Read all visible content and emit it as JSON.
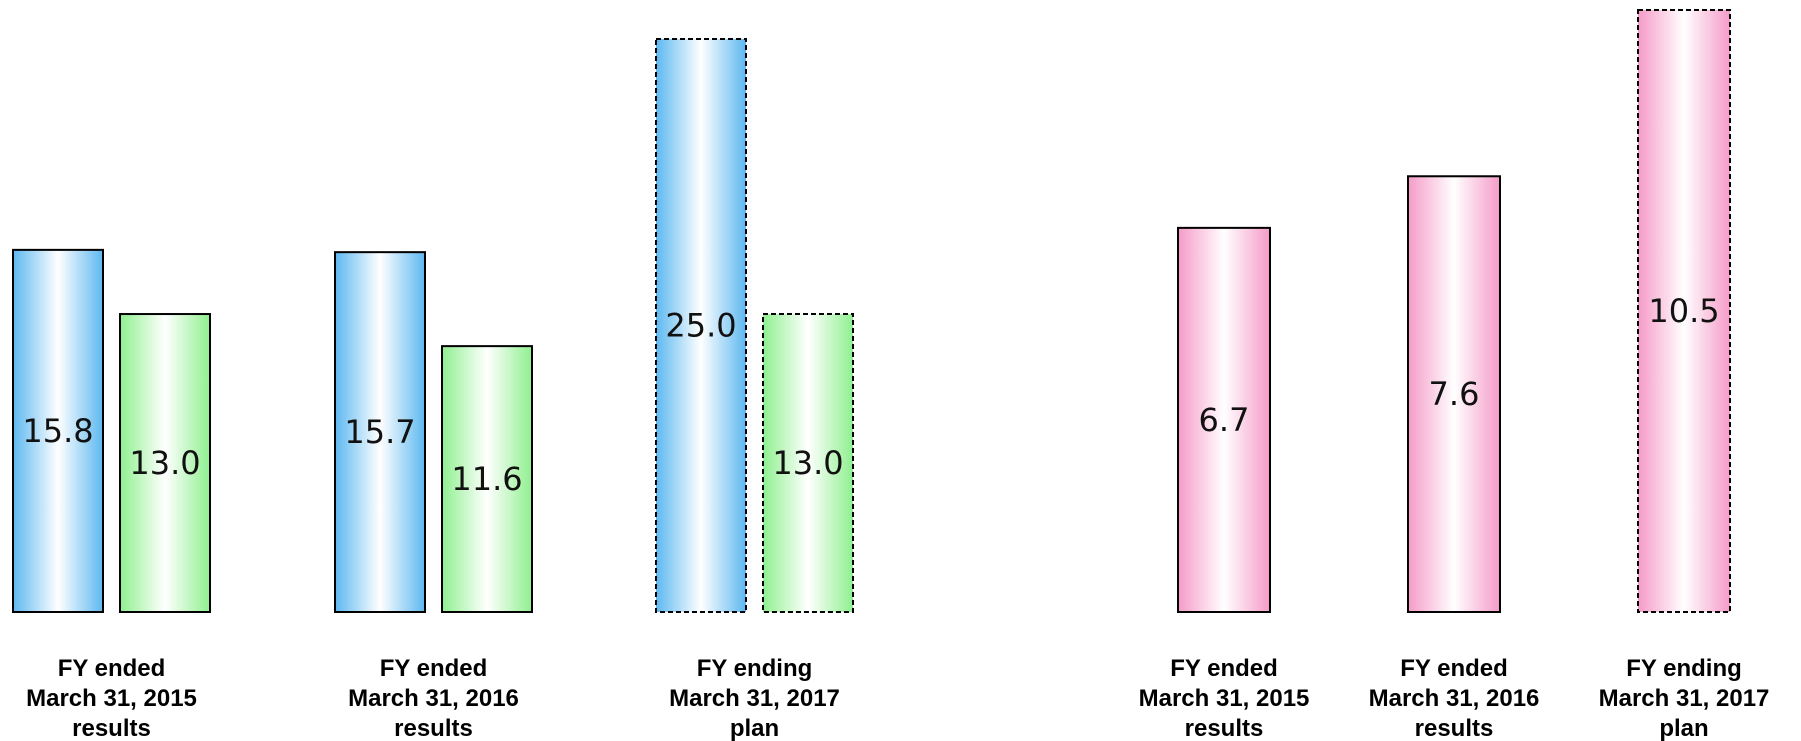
{
  "colors": {
    "blue_edge": "#5db8f0",
    "green_edge": "#8ff08f",
    "pink_edge": "#f59bc8",
    "center": "#ffffff",
    "outline": "#000000"
  },
  "chart_data": [
    {
      "type": "bar",
      "categories": [
        [
          "FY ended",
          "March 31, 2015",
          "results"
        ],
        [
          "FY ended",
          "March 31, 2016",
          "results"
        ],
        [
          "FY ending",
          "March 31, 2017",
          "plan"
        ]
      ],
      "series": [
        {
          "color": "blue",
          "values": [
            15.8,
            15.7,
            25.0
          ]
        },
        {
          "color": "green",
          "values": [
            13.0,
            11.6,
            13.0
          ]
        }
      ],
      "plan_dashed": [
        false,
        false,
        true
      ],
      "ylim": [
        0,
        25
      ]
    },
    {
      "type": "bar",
      "categories": [
        [
          "FY ended",
          "March 31, 2015",
          "results"
        ],
        [
          "FY ended",
          "March 31, 2016",
          "results"
        ],
        [
          "FY ending",
          "March 31, 2017",
          "plan"
        ]
      ],
      "series": [
        {
          "color": "pink",
          "values": [
            6.7,
            7.6,
            10.5
          ]
        }
      ],
      "plan_dashed": [
        false,
        false,
        true
      ],
      "ylim": [
        0,
        10.5
      ]
    }
  ]
}
